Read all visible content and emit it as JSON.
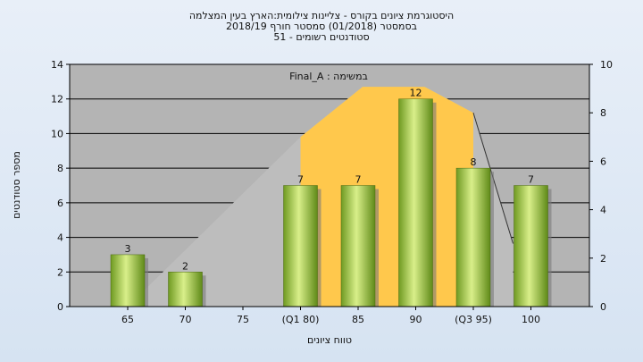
{
  "title_lines": [
    "היסטוגרמת ציונים בקורס - צליינות צילומית:הארץ בעין המצלמה",
    "בסמסטר  (01/2018)  סמסטר חורף 2018/19",
    "51 - סטודנטים רשומים"
  ],
  "chart_data": {
    "type": "bar",
    "categories": [
      "65",
      "70",
      "75",
      "(Q1 80)",
      "85",
      "90",
      "(Q3 95)",
      "100"
    ],
    "values": [
      3,
      2,
      0,
      7,
      7,
      12,
      8,
      7
    ],
    "value_labels": [
      "3",
      "2",
      "",
      "7",
      "7",
      "12",
      "8",
      "7"
    ],
    "ylim": [
      0,
      14
    ],
    "yticks": [
      "0",
      "2",
      "4",
      "6",
      "8",
      "10",
      "12",
      "14"
    ],
    "y2lim": [
      0,
      10
    ],
    "y2ticks": [
      "0",
      "2",
      "4",
      "6",
      "8",
      "10"
    ],
    "ylabel": "מספר סטודנטים",
    "xlabel": "טווח ציונים",
    "annotation": "Final_A : במשימה",
    "grid": true,
    "box_plot_shape": {
      "whisker_low": [
        65,
        0
      ],
      "q1": [
        80,
        7
      ],
      "median": [
        85,
        9
      ],
      "max_top": [
        90,
        9
      ],
      "q3": [
        95,
        8
      ],
      "whisker_high": [
        100,
        2.6
      ]
    },
    "colors": {
      "bar": "#9cc74a",
      "box_inner": "#ffc84c",
      "box_outer": "#bdbdbd",
      "plot_bg": "#b4b4b4"
    }
  }
}
